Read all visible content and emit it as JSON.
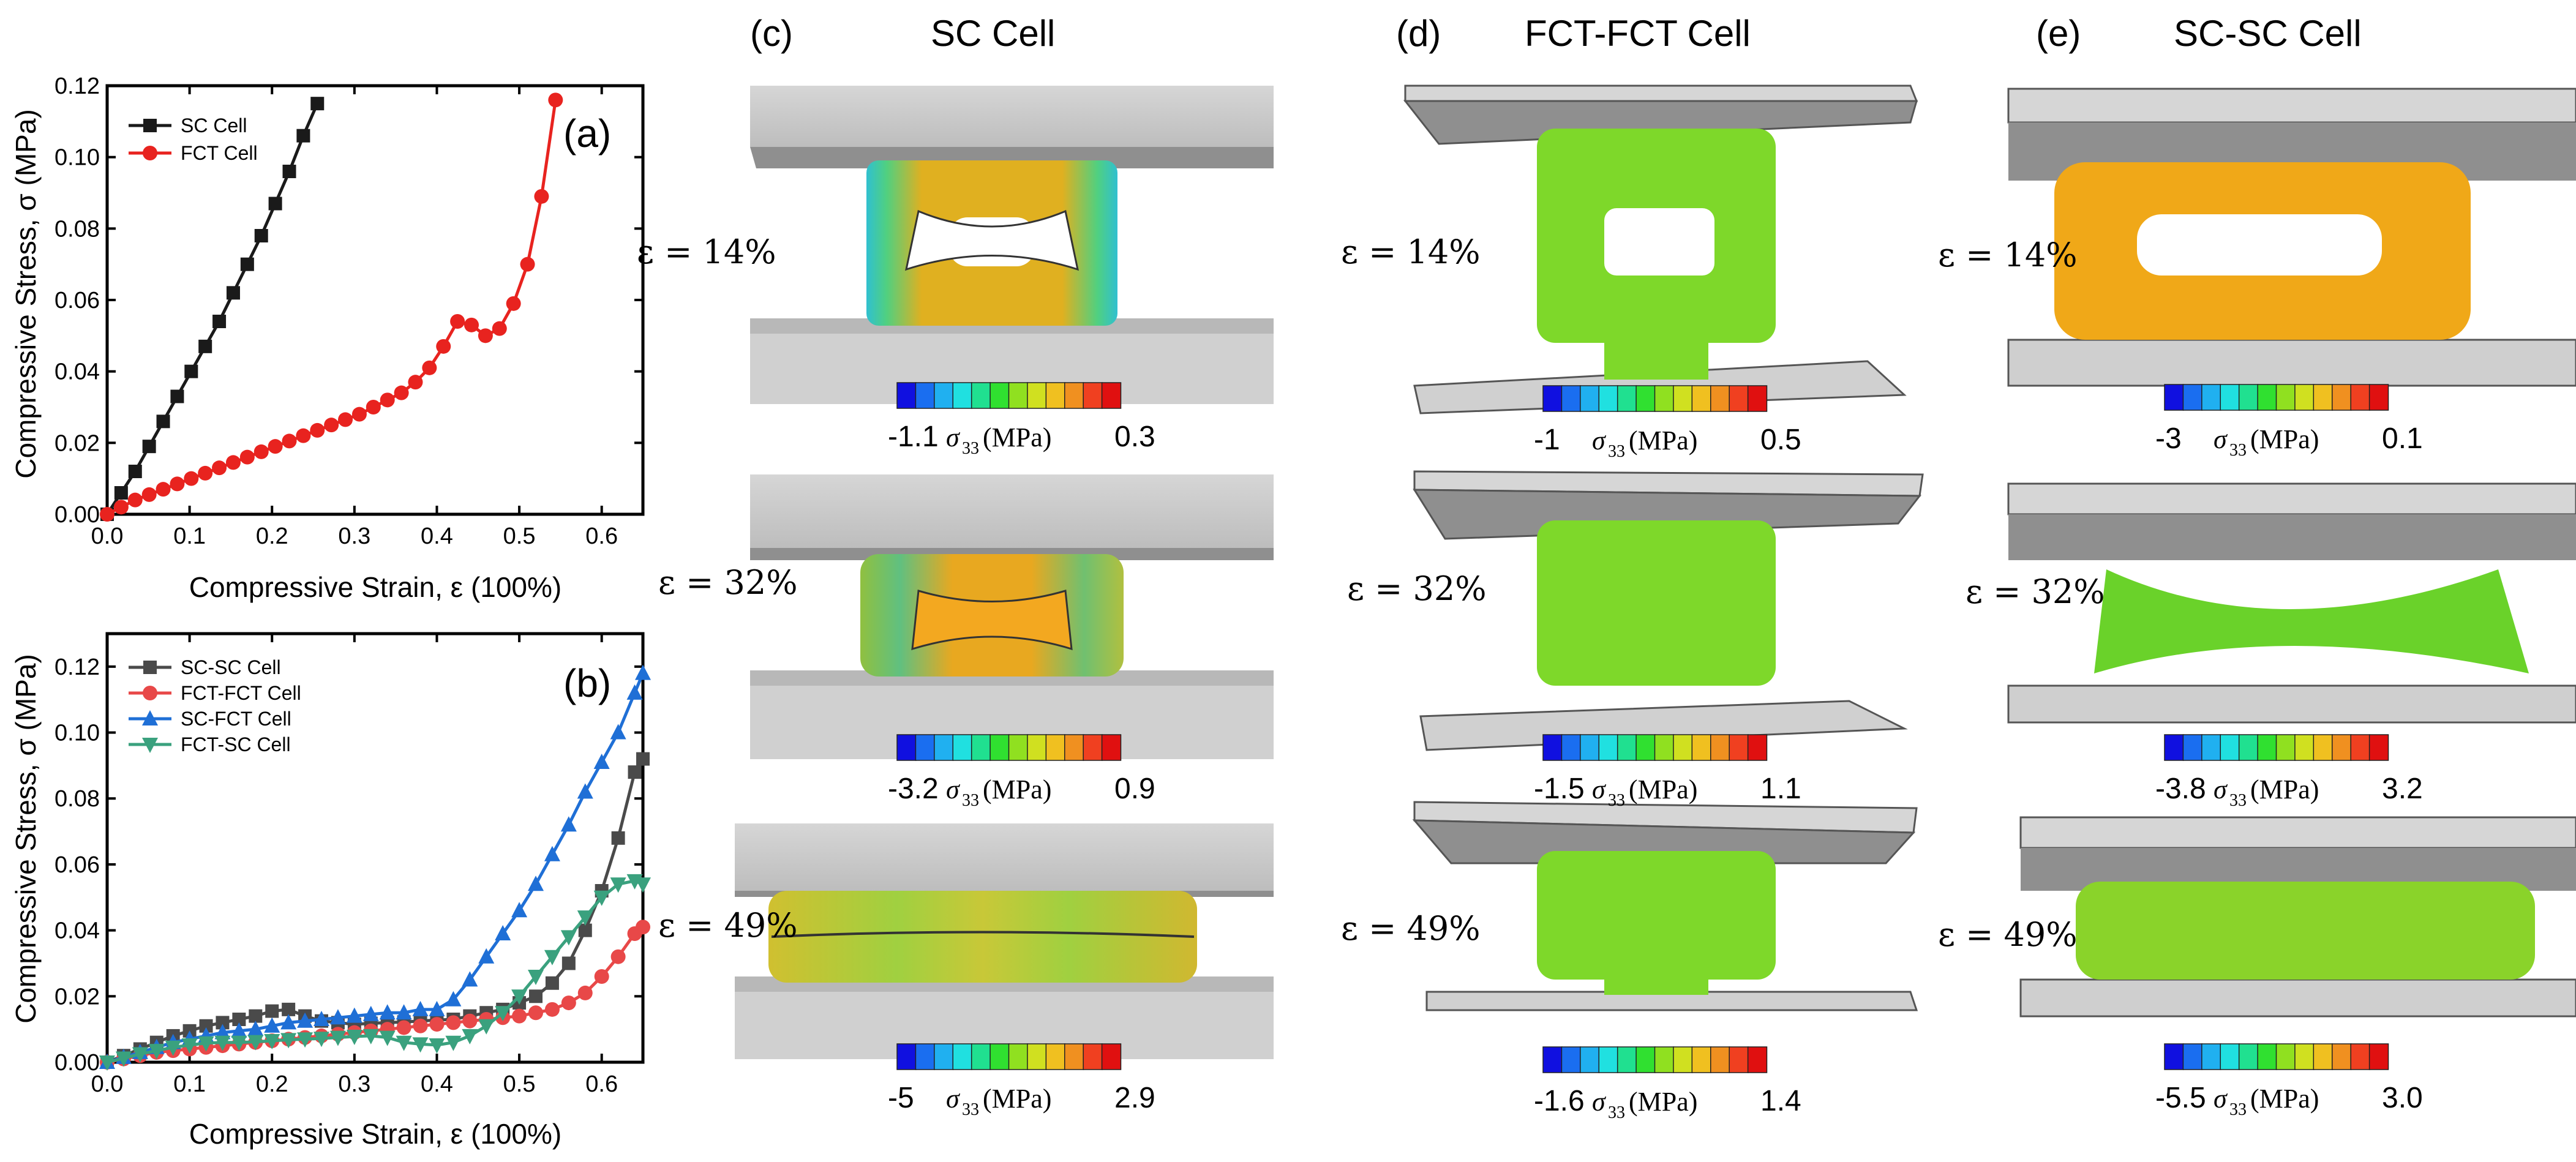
{
  "chart_data": [
    {
      "panel": "(a)",
      "type": "line",
      "xlabel": "Compressive Strain, ε (100%)",
      "ylabel": "Compressive Stress, σ (MPa)",
      "xlim": [
        0,
        0.65
      ],
      "ylim": [
        0,
        0.12
      ],
      "xticks": [
        "0.0",
        "0.1",
        "0.2",
        "0.3",
        "0.4",
        "0.5",
        "0.6"
      ],
      "yticks": [
        "0.00",
        "0.02",
        "0.04",
        "0.06",
        "0.08",
        "0.10",
        "0.12"
      ],
      "legend_position": "top-left",
      "series": [
        {
          "name": "SC Cell",
          "color": "#1a1a1a",
          "marker": "square",
          "x": [
            0.0,
            0.017,
            0.034,
            0.051,
            0.068,
            0.085,
            0.102,
            0.119,
            0.136,
            0.153,
            0.17,
            0.187,
            0.204,
            0.221,
            0.238,
            0.255
          ],
          "y": [
            0.0,
            0.006,
            0.012,
            0.019,
            0.026,
            0.033,
            0.04,
            0.047,
            0.054,
            0.062,
            0.07,
            0.078,
            0.087,
            0.096,
            0.106,
            0.115
          ]
        },
        {
          "name": "FCT Cell",
          "color": "#e8231f",
          "marker": "circle",
          "x": [
            0.0,
            0.017,
            0.034,
            0.051,
            0.068,
            0.085,
            0.102,
            0.119,
            0.136,
            0.153,
            0.17,
            0.187,
            0.204,
            0.221,
            0.238,
            0.255,
            0.272,
            0.289,
            0.306,
            0.323,
            0.34,
            0.357,
            0.374,
            0.391,
            0.408,
            0.425,
            0.442,
            0.459,
            0.476,
            0.493,
            0.51,
            0.527,
            0.544
          ],
          "y": [
            0.0,
            0.002,
            0.004,
            0.0055,
            0.007,
            0.0085,
            0.01,
            0.0115,
            0.013,
            0.0145,
            0.016,
            0.0175,
            0.019,
            0.0205,
            0.022,
            0.0235,
            0.025,
            0.0265,
            0.028,
            0.03,
            0.032,
            0.034,
            0.037,
            0.041,
            0.047,
            0.054,
            0.053,
            0.05,
            0.052,
            0.059,
            0.07,
            0.089,
            0.116
          ]
        }
      ]
    },
    {
      "panel": "(b)",
      "type": "line",
      "xlabel": "Compressive Strain, ε (100%)",
      "ylabel": "Compressive Stress, σ (MPa)",
      "xlim": [
        0,
        0.65
      ],
      "ylim": [
        0,
        0.13
      ],
      "xticks": [
        "0.0",
        "0.1",
        "0.2",
        "0.3",
        "0.4",
        "0.5",
        "0.6"
      ],
      "yticks": [
        "0.00",
        "0.02",
        "0.04",
        "0.06",
        "0.08",
        "0.10",
        "0.12"
      ],
      "legend_position": "top-left",
      "series": [
        {
          "name": "SC-SC Cell",
          "color": "#4a4a4a",
          "marker": "square",
          "x": [
            0.0,
            0.02,
            0.04,
            0.06,
            0.08,
            0.1,
            0.12,
            0.14,
            0.16,
            0.18,
            0.2,
            0.22,
            0.24,
            0.26,
            0.28,
            0.3,
            0.32,
            0.34,
            0.36,
            0.38,
            0.4,
            0.42,
            0.44,
            0.46,
            0.48,
            0.5,
            0.52,
            0.54,
            0.56,
            0.58,
            0.6,
            0.62,
            0.64,
            0.65
          ],
          "y": [
            0.0,
            0.002,
            0.004,
            0.006,
            0.008,
            0.0095,
            0.011,
            0.012,
            0.013,
            0.014,
            0.0155,
            0.016,
            0.014,
            0.0125,
            0.012,
            0.0115,
            0.0118,
            0.012,
            0.0122,
            0.0125,
            0.0128,
            0.013,
            0.014,
            0.015,
            0.016,
            0.018,
            0.02,
            0.024,
            0.03,
            0.04,
            0.052,
            0.068,
            0.088,
            0.092
          ]
        },
        {
          "name": "FCT-FCT Cell",
          "color": "#e84848",
          "marker": "circle",
          "x": [
            0.0,
            0.02,
            0.04,
            0.06,
            0.08,
            0.1,
            0.12,
            0.14,
            0.16,
            0.18,
            0.2,
            0.22,
            0.24,
            0.26,
            0.28,
            0.3,
            0.32,
            0.34,
            0.36,
            0.38,
            0.4,
            0.42,
            0.44,
            0.46,
            0.48,
            0.5,
            0.52,
            0.54,
            0.56,
            0.58,
            0.6,
            0.62,
            0.64,
            0.65
          ],
          "y": [
            0.0,
            0.001,
            0.002,
            0.003,
            0.0035,
            0.004,
            0.0045,
            0.005,
            0.0055,
            0.006,
            0.0065,
            0.007,
            0.0075,
            0.008,
            0.0085,
            0.009,
            0.0095,
            0.01,
            0.0105,
            0.011,
            0.0115,
            0.012,
            0.0125,
            0.013,
            0.0135,
            0.014,
            0.015,
            0.016,
            0.018,
            0.021,
            0.026,
            0.032,
            0.039,
            0.041
          ]
        },
        {
          "name": "SC-FCT Cell",
          "color": "#1f6fd6",
          "marker": "triangle-up",
          "x": [
            0.0,
            0.02,
            0.04,
            0.06,
            0.08,
            0.1,
            0.12,
            0.14,
            0.16,
            0.18,
            0.2,
            0.22,
            0.24,
            0.26,
            0.28,
            0.3,
            0.32,
            0.34,
            0.36,
            0.38,
            0.4,
            0.42,
            0.44,
            0.46,
            0.48,
            0.5,
            0.52,
            0.54,
            0.56,
            0.58,
            0.6,
            0.62,
            0.64,
            0.65
          ],
          "y": [
            0.0,
            0.0015,
            0.003,
            0.0045,
            0.006,
            0.007,
            0.008,
            0.009,
            0.0095,
            0.01,
            0.011,
            0.012,
            0.0125,
            0.013,
            0.0135,
            0.014,
            0.0145,
            0.015,
            0.015,
            0.016,
            0.016,
            0.019,
            0.025,
            0.032,
            0.039,
            0.046,
            0.054,
            0.063,
            0.072,
            0.082,
            0.091,
            0.1,
            0.112,
            0.118
          ]
        },
        {
          "name": "FCT-SC Cell",
          "color": "#3aa17e",
          "marker": "triangle-down",
          "x": [
            0.0,
            0.02,
            0.04,
            0.06,
            0.08,
            0.1,
            0.12,
            0.14,
            0.16,
            0.18,
            0.2,
            0.22,
            0.24,
            0.26,
            0.28,
            0.3,
            0.32,
            0.34,
            0.36,
            0.38,
            0.4,
            0.42,
            0.44,
            0.46,
            0.48,
            0.5,
            0.52,
            0.54,
            0.56,
            0.58,
            0.6,
            0.62,
            0.64,
            0.65
          ],
          "y": [
            0.0,
            0.0012,
            0.0025,
            0.0035,
            0.0045,
            0.0052,
            0.0058,
            0.006,
            0.006,
            0.0062,
            0.0065,
            0.0068,
            0.007,
            0.0072,
            0.0075,
            0.0078,
            0.008,
            0.0075,
            0.006,
            0.0055,
            0.0052,
            0.006,
            0.008,
            0.011,
            0.015,
            0.02,
            0.026,
            0.032,
            0.038,
            0.044,
            0.05,
            0.054,
            0.055,
            0.054
          ]
        }
      ]
    }
  ],
  "panels": {
    "c": {
      "label": "(c)",
      "title": "SC Cell"
    },
    "d": {
      "label": "(d)",
      "title": "FCT-FCT Cell"
    },
    "e": {
      "label": "(e)",
      "title": "SC-SC Cell"
    }
  },
  "strain_labels": [
    "ε = 14%",
    "ε = 32%",
    "ε = 49%"
  ],
  "colorbar": {
    "sigma_symbol": "σ",
    "subscript": "33",
    "unit": "(MPa)",
    "colors": [
      "#1010e0",
      "#1a6ef0",
      "#20b0f0",
      "#20e0e0",
      "#20e090",
      "#30e030",
      "#90e020",
      "#d0e020",
      "#f0c020",
      "#f09020",
      "#f04020",
      "#e01010"
    ],
    "ranges": {
      "c": [
        [
          "-1.1",
          "0.3"
        ],
        [
          "-3.2",
          "0.9"
        ],
        [
          "-5",
          "2.9"
        ]
      ],
      "d": [
        [
          "-1",
          "0.5"
        ],
        [
          "-1.5",
          "1.1"
        ],
        [
          "-1.6",
          "1.4"
        ]
      ],
      "e": [
        [
          "-3",
          "0.1"
        ],
        [
          "-3.8",
          "3.2"
        ],
        [
          "-5.5",
          "3.0"
        ]
      ]
    }
  }
}
